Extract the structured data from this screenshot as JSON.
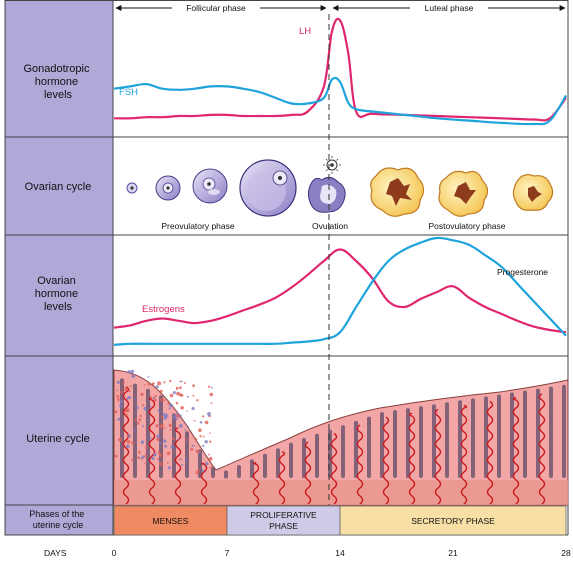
{
  "header": {
    "follicular_phase": "Follicular phase",
    "luteal_phase": "Luteal phase"
  },
  "rows": {
    "gonadotropic": [
      "Gonadotropic",
      "hormone",
      "levels"
    ],
    "ovarian_cycle": "Ovarian cycle",
    "ovarian_hormone": [
      "Ovarian",
      "hormone",
      "levels"
    ],
    "uterine_cycle": "Uterine cycle",
    "phases_label": [
      "Phases of the",
      "uterine cycle"
    ],
    "days_label": "DAYS"
  },
  "labels": {
    "lh": "LH",
    "fsh": "FSH",
    "estrogens": "Estrogens",
    "progesterone": "Progesterone",
    "preovulatory": "Preovulatory phase",
    "ovulation": "Ovulation",
    "postovulatory": "Postovulatory phase"
  },
  "phases": [
    {
      "label": [
        "MENSES"
      ],
      "start_day": 0,
      "end_day": 7,
      "color": "#f08a62"
    },
    {
      "label": [
        "PROLIFERATIVE",
        "PHASE"
      ],
      "start_day": 7,
      "end_day": 14,
      "color": "#cfcbe6"
    },
    {
      "label": [
        "SECRETORY PHASE"
      ],
      "start_day": 14,
      "end_day": 28,
      "color": "#f8dfa6"
    }
  ],
  "days": [
    "0",
    "7",
    "14",
    "21",
    "28"
  ],
  "colors": {
    "sidebar": "#b0a9d8",
    "lh": "#e0266e",
    "fsh": "#1ea3dc",
    "estrogens": "#e0266e",
    "progesterone": "#1ea3dc"
  },
  "chart_data": [
    {
      "type": "line",
      "x": [
        0,
        1,
        2,
        3,
        4,
        5,
        6,
        7,
        8,
        9,
        10,
        11,
        12,
        13,
        13.5,
        14,
        14.5,
        15,
        16,
        18,
        20,
        22,
        24,
        26,
        27,
        28
      ],
      "series": [
        {
          "name": "LH",
          "values": [
            12,
            12,
            13,
            13,
            14,
            14,
            15,
            15,
            14,
            14,
            14,
            15,
            18,
            40,
            88,
            98,
            70,
            18,
            16,
            15,
            14,
            13,
            12,
            11,
            12,
            30
          ]
        },
        {
          "name": "FSH",
          "values": [
            38,
            40,
            42,
            38,
            37,
            38,
            40,
            40,
            38,
            35,
            30,
            25,
            25,
            30,
            46,
            44,
            26,
            20,
            18,
            15,
            12,
            10,
            8,
            7,
            10,
            32
          ]
        }
      ],
      "ylim": [
        0,
        100
      ]
    },
    {
      "type": "line",
      "x": [
        0,
        1,
        2,
        3,
        4,
        5,
        6,
        7,
        8,
        9,
        10,
        11,
        12,
        13,
        14,
        15,
        16,
        17,
        18,
        19,
        20,
        21,
        22,
        23,
        24,
        25,
        26,
        27,
        28
      ],
      "series": [
        {
          "name": "Estrogens",
          "values": [
            22,
            24,
            28,
            30,
            28,
            26,
            28,
            32,
            37,
            42,
            48,
            57,
            68,
            80,
            90,
            80,
            65,
            45,
            40,
            47,
            53,
            58,
            48,
            40,
            34,
            28,
            23,
            20,
            18
          ]
        },
        {
          "name": "Progesterone",
          "values": [
            7,
            8,
            8,
            8,
            8,
            8,
            8,
            8,
            8,
            8,
            8,
            9,
            10,
            12,
            18,
            40,
            62,
            80,
            90,
            96,
            100,
            98,
            94,
            85,
            75,
            60,
            45,
            30,
            15
          ]
        }
      ],
      "ylim": [
        0,
        100
      ]
    }
  ]
}
